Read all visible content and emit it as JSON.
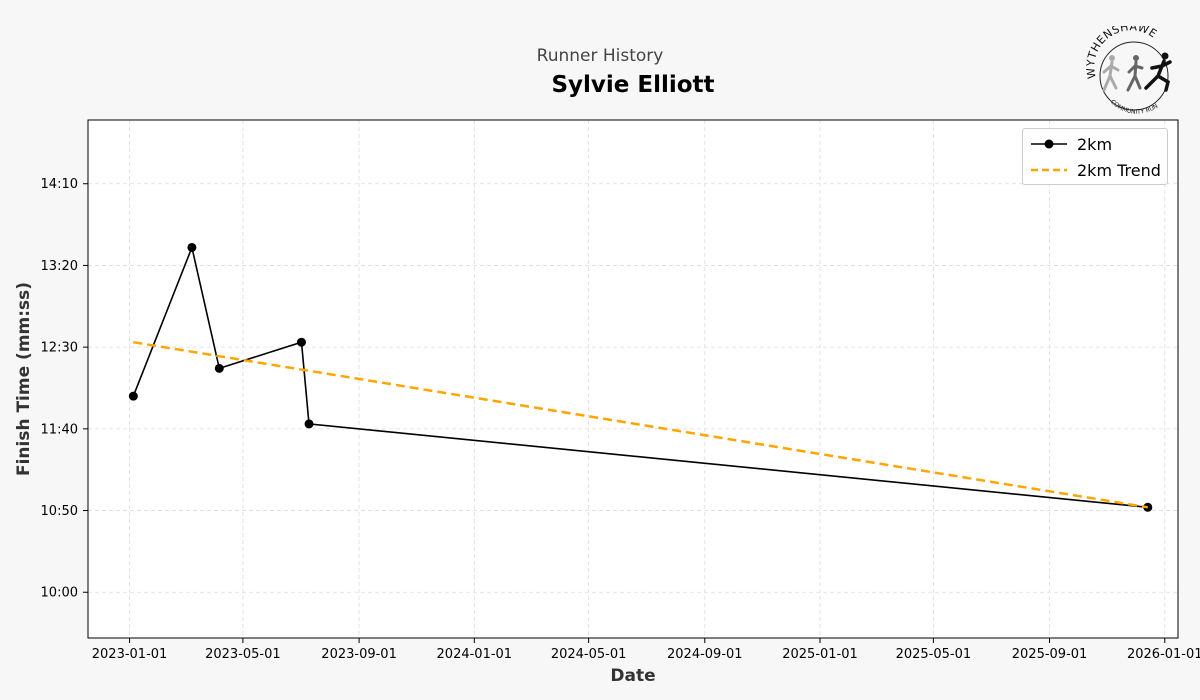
{
  "header": {
    "subtitle": "Runner History",
    "title": "Sylvie Elliott"
  },
  "logo": {
    "icon": "wythenshawe-community-run-logo",
    "top_text": "WYTHENSHAWE",
    "bottom_text": "COMMUNITY RUN"
  },
  "chart_data": {
    "type": "line",
    "xlabel": "Date",
    "ylabel": "Finish Time (mm:ss)",
    "x_ticks": [
      "2023-01-01",
      "2023-05-01",
      "2023-09-01",
      "2024-01-01",
      "2024-05-01",
      "2024-09-01",
      "2025-01-01",
      "2025-05-01",
      "2025-09-01",
      "2026-01-01"
    ],
    "y_ticks": [
      "10:00",
      "10:50",
      "11:40",
      "12:30",
      "13:20",
      "14:10"
    ],
    "xlim": [
      "2022-11-18",
      "2026-01-15"
    ],
    "ylim_seconds": [
      572,
      889
    ],
    "grid": true,
    "legend_position": "top-right",
    "series": [
      {
        "name": "2km",
        "color": "#000000",
        "style": "solid-markers",
        "points": [
          {
            "date": "2023-01-05",
            "time": "12:00"
          },
          {
            "date": "2023-03-08",
            "time": "13:31"
          },
          {
            "date": "2023-04-06",
            "time": "12:17"
          },
          {
            "date": "2023-07-02",
            "time": "12:33"
          },
          {
            "date": "2023-07-10",
            "time": "11:43"
          },
          {
            "date": "2025-12-14",
            "time": "10:52"
          }
        ]
      },
      {
        "name": "2km Trend",
        "color": "#FFA500",
        "style": "dashed",
        "points": [
          {
            "date": "2023-01-05",
            "time": "12:33"
          },
          {
            "date": "2025-12-14",
            "time": "10:52"
          }
        ]
      }
    ]
  }
}
